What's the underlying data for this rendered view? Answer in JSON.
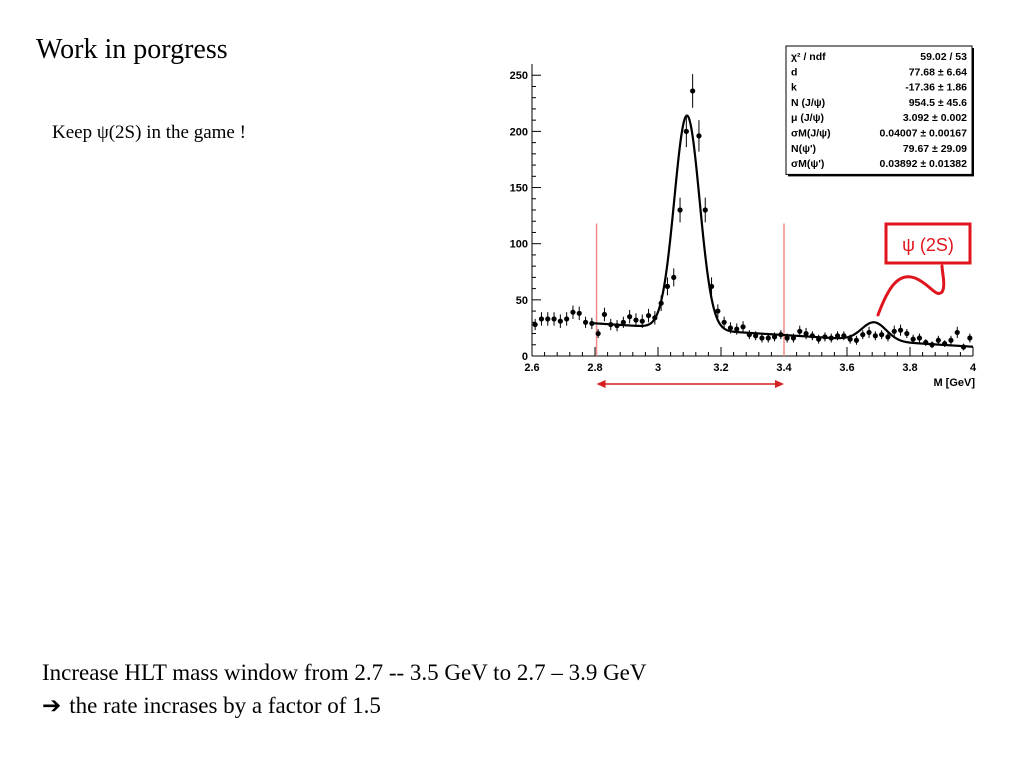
{
  "slide": {
    "title": "Work in porgress",
    "subtitle": "Keep  ψ(2S) in the game !",
    "footer_line1": "Increase HLT mass window from 2.7  -- 3.5 GeV to 2.7 – 3.9 GeV",
    "footer_line2_icon": "right-arrow-icon",
    "footer_line2_arrow": "➔",
    "footer_line2": "the rate incrases by a factor of 1.5"
  },
  "chart_data": {
    "type": "scatter",
    "xlabel": "M [GeV]",
    "xlim": [
      2.6,
      4.0
    ],
    "ylim": [
      0,
      260
    ],
    "xticks": [
      2.6,
      2.8,
      3,
      3.2,
      3.4,
      3.6,
      3.8,
      4
    ],
    "yticks": [
      0,
      50,
      100,
      150,
      200,
      250
    ],
    "series": [
      {
        "kind": "points-with-errors",
        "x": [
          2.61,
          2.63,
          2.65,
          2.67,
          2.69,
          2.71,
          2.73,
          2.75,
          2.77,
          2.79,
          2.81,
          2.83,
          2.85,
          2.87,
          2.89,
          2.91,
          2.93,
          2.95,
          2.97,
          2.99,
          3.01,
          3.03,
          3.05,
          3.07,
          3.09,
          3.11,
          3.13,
          3.15,
          3.17,
          3.19,
          3.21,
          3.23,
          3.25,
          3.27,
          3.29,
          3.31,
          3.33,
          3.35,
          3.37,
          3.39,
          3.41,
          3.43,
          3.45,
          3.47,
          3.49,
          3.51,
          3.53,
          3.55,
          3.57,
          3.59,
          3.61,
          3.63,
          3.65,
          3.67,
          3.69,
          3.71,
          3.73,
          3.75,
          3.77,
          3.79,
          3.81,
          3.83,
          3.85,
          3.87,
          3.89,
          3.91,
          3.93,
          3.95,
          3.97,
          3.99
        ],
        "y": [
          28,
          33,
          33,
          33,
          31,
          33,
          39,
          38,
          30,
          29,
          20,
          37,
          28,
          27,
          30,
          35,
          32,
          31,
          36,
          34,
          47,
          62,
          70,
          130,
          200,
          236,
          196,
          130,
          62,
          40,
          30,
          25,
          24,
          26,
          19,
          18,
          16,
          16,
          17,
          19,
          16,
          16,
          22,
          20,
          18,
          15,
          17,
          16,
          18,
          18,
          15,
          14,
          19,
          21,
          18,
          19,
          17,
          22,
          23,
          20,
          15,
          16,
          12,
          10,
          14,
          11,
          14,
          21,
          8,
          16
        ],
        "yerr": [
          5,
          6,
          6,
          6,
          6,
          6,
          6,
          6,
          5,
          5,
          4,
          6,
          5,
          5,
          5,
          6,
          6,
          6,
          6,
          6,
          7,
          8,
          8,
          11,
          14,
          15,
          14,
          11,
          8,
          6,
          5,
          5,
          5,
          5,
          4,
          4,
          4,
          4,
          4,
          4,
          4,
          4,
          5,
          5,
          4,
          4,
          4,
          4,
          4,
          4,
          4,
          4,
          4,
          5,
          4,
          4,
          4,
          5,
          5,
          4,
          4,
          4,
          3,
          3,
          4,
          3,
          4,
          5,
          3,
          4
        ]
      },
      {
        "kind": "fit-curve",
        "model": "linear background + gaussian J/psi + gaussian psi(2S)",
        "d": 77.68,
        "k": -17.36,
        "N_jpsi": 954.5,
        "mu_jpsi": 3.092,
        "sigma_jpsi": 0.04007,
        "N_psi2s": 79.67,
        "mu_psi2s": 3.686,
        "sigma_psi2s": 0.03892,
        "bin_width": 0.02
      }
    ],
    "window_lines": [
      2.805,
      3.4
    ],
    "mass_window_arrow": [
      2.805,
      3.4
    ],
    "stats_box": [
      {
        "key": "χ² / ndf",
        "value": "59.02 / 53"
      },
      {
        "key": "d",
        "value": "77.68 ± 6.64"
      },
      {
        "key": "k",
        "value": "-17.36 ± 1.86"
      },
      {
        "key": "N (J/ψ)",
        "value": "954.5 ± 45.6"
      },
      {
        "key": "μ  (J/ψ)",
        "value": "3.092 ± 0.002"
      },
      {
        "key": "σM(J/ψ)",
        "value": "0.04007 ± 0.00167"
      },
      {
        "key": "N(ψ')",
        "value": "79.67 ± 29.09"
      },
      {
        "key": "σM(ψ')",
        "value": "0.03892 ± 0.01382"
      }
    ],
    "annotation": {
      "label": "ψ (2S)",
      "color": "#e0141c"
    },
    "colors": {
      "points": "#000000",
      "fit": "#000000",
      "window_lines": "#f08a8a",
      "arrow": "#d42020"
    }
  }
}
